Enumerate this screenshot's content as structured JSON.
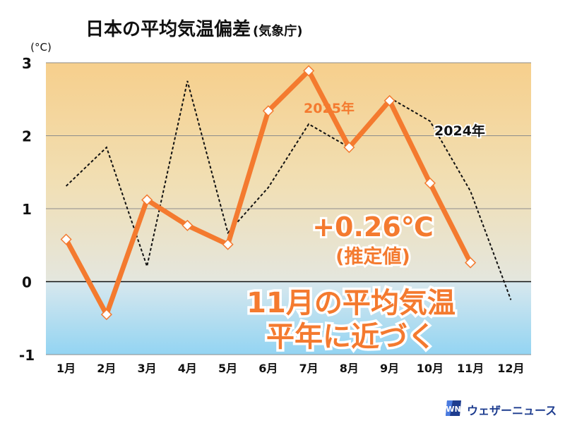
{
  "title": "日本の平均気温偏差",
  "title_source": "(気象庁)",
  "unit": "(°C)",
  "chart_data": {
    "type": "line",
    "title": "日本の平均気温偏差",
    "ylabel": "(°C)",
    "categories": [
      "1月",
      "2月",
      "3月",
      "4月",
      "5月",
      "6月",
      "7月",
      "8月",
      "9月",
      "10月",
      "11月",
      "12月"
    ],
    "ylim": [
      -1,
      3
    ],
    "yticks": [
      3,
      2,
      1,
      0,
      -1
    ],
    "grid": true,
    "series": [
      {
        "name": "2025年",
        "color": "#f47a2f",
        "style": "solid",
        "values": [
          0.58,
          -0.45,
          1.12,
          0.77,
          0.51,
          2.34,
          2.89,
          1.84,
          2.48,
          1.35,
          0.26,
          null
        ]
      },
      {
        "name": "2024年",
        "color": "#111111",
        "style": "dotted",
        "values": [
          1.31,
          1.84,
          0.21,
          2.75,
          0.67,
          1.29,
          2.16,
          1.84,
          2.52,
          2.2,
          1.24,
          -0.25
        ]
      }
    ],
    "annotations": [
      {
        "text": "+0.26℃",
        "color": "#f47a2f"
      },
      {
        "text": "(推定値)",
        "color": "#f47a2f"
      },
      {
        "text": "11月の平均気温",
        "color": "#f47a2f"
      },
      {
        "text": "平年に近づく",
        "color": "#f47a2f"
      }
    ]
  },
  "branding": {
    "logo_mark": "WN",
    "text": "ウェザーニュース"
  },
  "colors": {
    "orange": "#f47a2f",
    "dark": "#111111",
    "warm_top": "#f6cf8c",
    "cool_bottom": "#97d6f2",
    "brand_blue": "#1d3c8f"
  }
}
